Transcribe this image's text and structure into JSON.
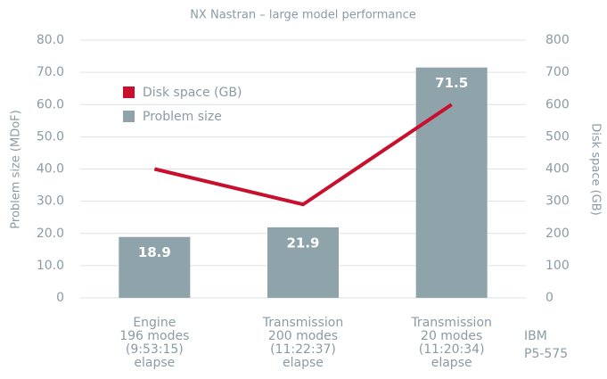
{
  "chart_data": {
    "type": "bar_line",
    "title": "NX Nastran – large model performance",
    "ylabel": "Problem size (MDoF)",
    "y2label": "Disk space (GB)",
    "annotation": "IBM\nP5-575",
    "categories": [
      "Engine\n196  modes\n(9:53:15)\nelapse",
      "Transmission\n200 modes\n(11:22:37)\nelapse",
      "Transmission\n20 modes\n(11:20:34)\nelapse"
    ],
    "series": [
      {
        "name": "Problem size",
        "type": "bar",
        "color": "#8fa3ab",
        "values": [
          18.9,
          21.9,
          71.5
        ],
        "value_labels": [
          "18.9",
          "21.9",
          "71.5"
        ]
      },
      {
        "name": "Disk space (GB)",
        "type": "line",
        "color": "#c8102e",
        "axis": "y2",
        "values": [
          400,
          290,
          600
        ]
      }
    ],
    "ylim": [
      0,
      80
    ],
    "yticks": [
      {
        "value": 0,
        "label": "0"
      },
      {
        "value": 10,
        "label": "10.0"
      },
      {
        "value": 20,
        "label": "20.0"
      },
      {
        "value": 30,
        "label": "30.0"
      },
      {
        "value": 40,
        "label": "40.0"
      },
      {
        "value": 50,
        "label": "50.0"
      },
      {
        "value": 60,
        "label": "60.0"
      },
      {
        "value": 70,
        "label": "70.0"
      },
      {
        "value": 80,
        "label": "80.0"
      }
    ],
    "y2lim": [
      0,
      800
    ],
    "y2ticks": [
      0,
      100,
      200,
      300,
      400,
      500,
      600,
      700,
      800
    ],
    "grid": true
  }
}
